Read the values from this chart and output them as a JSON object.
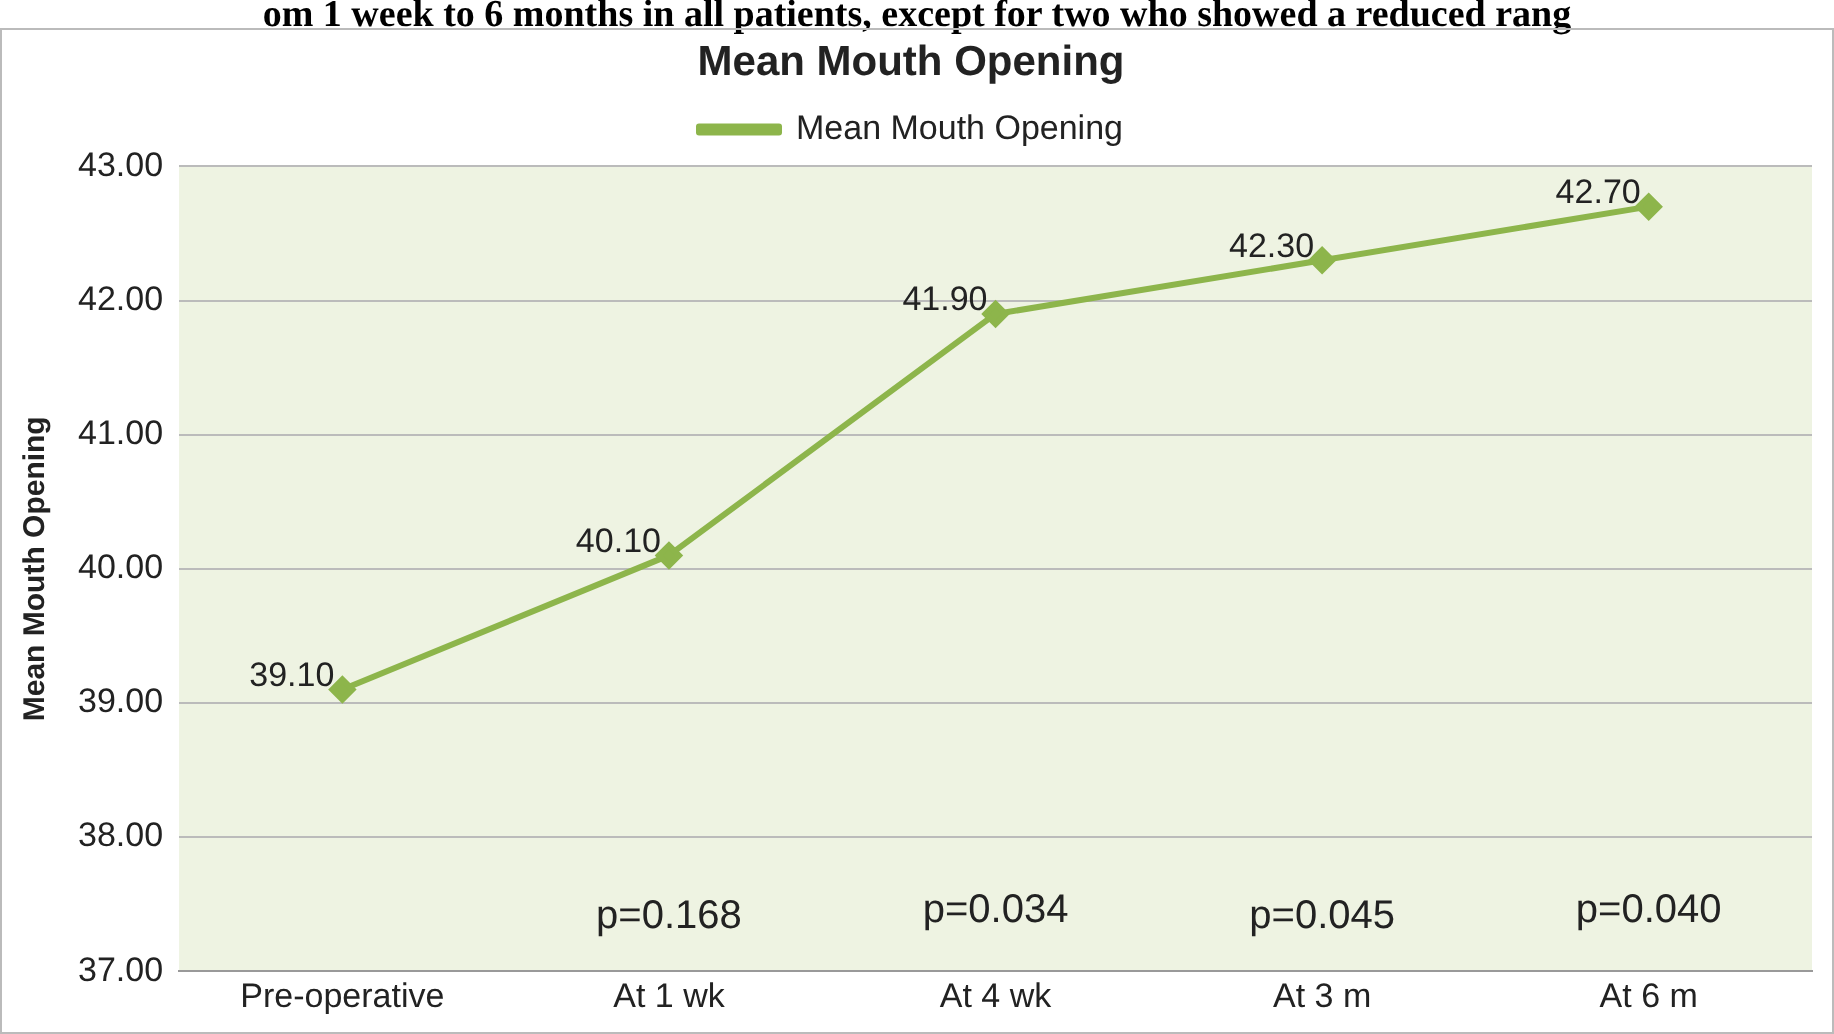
{
  "chart_data": {
    "type": "line",
    "title": "Mean Mouth Opening",
    "ylabel": "Mean Mouth Opening",
    "categories": [
      "Pre-operative",
      "At 1 wk",
      "At 4 wk",
      "At 3 m",
      "At 6 m"
    ],
    "series": [
      {
        "name": "Mean Mouth Opening",
        "color": "#8db54b",
        "values": [
          39.1,
          40.1,
          41.9,
          42.3,
          42.7
        ],
        "value_labels": [
          "39.10",
          "40.10",
          "41.90",
          "42.30",
          "42.70"
        ]
      }
    ],
    "ylim": [
      37,
      43
    ],
    "yticks": [
      {
        "value": 37,
        "label": "37.00"
      },
      {
        "value": 38,
        "label": "38.00"
      },
      {
        "value": 39,
        "label": "39.00"
      },
      {
        "value": 40,
        "label": "40.00"
      },
      {
        "value": 41,
        "label": "41.00"
      },
      {
        "value": 42,
        "label": "42.00"
      },
      {
        "value": 43,
        "label": "43.00"
      }
    ],
    "grid": "y",
    "legend": "top",
    "marker": "diamond",
    "line_style": "solid",
    "annotations": [
      "om 1 week to 6 months in all patients, except for two who showed a reduced rang",
      "p=0.168",
      "p=0.034",
      "p=0.045",
      "p=0.040"
    ]
  }
}
